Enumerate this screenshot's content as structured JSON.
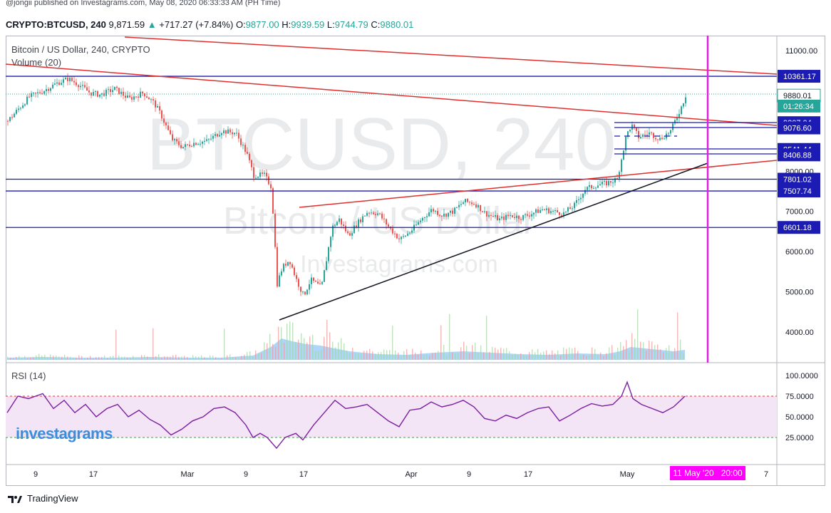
{
  "publisher": "@jongii published on Investagrams.com, May 08, 2020 06:33:33 AM (PH Time)",
  "header": {
    "symbol": "CRYPTO:BTCUSD, 240",
    "last": "9,871.59",
    "change": "+717.27 (+7.84%)",
    "o_label": "O:",
    "o": "9877.00",
    "h_label": "H:",
    "h": "9939.59",
    "l_label": "L:",
    "l": "9744.79",
    "c_label": "C:",
    "c": "9880.01"
  },
  "main_title": "Bitcoin / US Dollar, 240, CRYPTO",
  "volume_label": "Volume (20)",
  "rsi_label": "RSI (14)",
  "watermark": {
    "big": "BTCUSD, 240",
    "sub": "Bitcoin / US Dollar",
    "site": "Investagrams.com"
  },
  "logo_text": "investagrams",
  "footer_brand": "TradingView",
  "time_flag": "11 May '20   20:00",
  "colors": {
    "up": "#26a69a",
    "down": "#ef5350",
    "hline": "#1c1cb4",
    "trend_red": "#e0302e",
    "trend_black": "#131722",
    "vline": "#e020e0",
    "rsi_line": "#7b1fa2",
    "rsi_band": "#f3e5f5",
    "volume": "#90caf9"
  },
  "chart_data": {
    "type": "candlestick",
    "title": "Bitcoin / US Dollar, 240, CRYPTO",
    "price_axis": {
      "ticks": [
        4000,
        5000,
        6000,
        7000,
        8000,
        11000
      ],
      "tick_labels": [
        "4000.00",
        "5000.00",
        "6000.00",
        "7000.00",
        "8000.00",
        "11000.00"
      ],
      "range": [
        3300,
        11300
      ]
    },
    "x_axis": {
      "labels": [
        "9",
        "17",
        "Mar",
        "9",
        "17",
        "Apr",
        "9",
        "17",
        "May",
        "7"
      ]
    },
    "price_labels": [
      {
        "label": "10361.17",
        "value": 10361.17,
        "style": "box"
      },
      {
        "label": "9880.01",
        "value": 9880.01,
        "style": "last"
      },
      {
        "label": "01:26:34",
        "value": 9620,
        "style": "timer"
      },
      {
        "label": "9207.04",
        "value": 9207.04,
        "style": "box"
      },
      {
        "label": "9076.60",
        "value": 9076.6,
        "style": "box"
      },
      {
        "label": "8541.44",
        "value": 8541.44,
        "style": "box"
      },
      {
        "label": "8406.88",
        "value": 8406.88,
        "style": "box"
      },
      {
        "label": "7801.02",
        "value": 7801.02,
        "style": "box"
      },
      {
        "label": "7507.74",
        "value": 7507.74,
        "style": "box"
      },
      {
        "label": "6601.18",
        "value": 6601.18,
        "style": "box"
      }
    ],
    "horizontal_levels": [
      10361.17,
      7801.02,
      7507.74,
      6601.18
    ],
    "close_path": [
      [
        0,
        9250
      ],
      [
        30,
        9850
      ],
      [
        50,
        10000
      ],
      [
        70,
        10200
      ],
      [
        85,
        10300
      ],
      [
        100,
        10150
      ],
      [
        115,
        9950
      ],
      [
        130,
        9900
      ],
      [
        150,
        10050
      ],
      [
        170,
        9800
      ],
      [
        190,
        9950
      ],
      [
        205,
        9700
      ],
      [
        215,
        9400
      ],
      [
        230,
        8800
      ],
      [
        245,
        8600
      ],
      [
        260,
        8700
      ],
      [
        280,
        8750
      ],
      [
        300,
        9000
      ],
      [
        320,
        8950
      ],
      [
        335,
        8450
      ],
      [
        345,
        7900
      ],
      [
        360,
        7900
      ],
      [
        370,
        7600
      ],
      [
        378,
        5200
      ],
      [
        385,
        5600
      ],
      [
        395,
        5800
      ],
      [
        405,
        5300
      ],
      [
        415,
        4900
      ],
      [
        425,
        5300
      ],
      [
        440,
        5100
      ],
      [
        455,
        6600
      ],
      [
        465,
        6800
      ],
      [
        478,
        6400
      ],
      [
        490,
        6700
      ],
      [
        505,
        7000
      ],
      [
        520,
        6950
      ],
      [
        535,
        6600
      ],
      [
        550,
        6300
      ],
      [
        565,
        6500
      ],
      [
        580,
        6800
      ],
      [
        595,
        7050
      ],
      [
        610,
        6900
      ],
      [
        625,
        7000
      ],
      [
        640,
        7250
      ],
      [
        655,
        7200
      ],
      [
        670,
        6950
      ],
      [
        690,
        6800
      ],
      [
        705,
        6900
      ],
      [
        720,
        6850
      ],
      [
        735,
        6950
      ],
      [
        750,
        7050
      ],
      [
        765,
        7000
      ],
      [
        780,
        6950
      ],
      [
        795,
        7150
      ],
      [
        810,
        7550
      ],
      [
        825,
        7650
      ],
      [
        840,
        7700
      ],
      [
        855,
        7800
      ],
      [
        868,
        8900
      ],
      [
        875,
        9150
      ],
      [
        885,
        8850
      ],
      [
        900,
        8950
      ],
      [
        915,
        8800
      ],
      [
        930,
        9000
      ],
      [
        945,
        9600
      ],
      [
        951,
        9880
      ]
    ],
    "volume_path": [
      [
        0,
        3
      ],
      [
        50,
        4
      ],
      [
        100,
        3
      ],
      [
        150,
        3
      ],
      [
        200,
        4
      ],
      [
        250,
        3
      ],
      [
        300,
        3
      ],
      [
        345,
        6
      ],
      [
        370,
        18
      ],
      [
        385,
        30
      ],
      [
        400,
        26
      ],
      [
        420,
        22
      ],
      [
        440,
        20
      ],
      [
        460,
        16
      ],
      [
        480,
        12
      ],
      [
        520,
        8
      ],
      [
        560,
        7
      ],
      [
        600,
        10
      ],
      [
        640,
        12
      ],
      [
        680,
        10
      ],
      [
        720,
        8
      ],
      [
        760,
        7
      ],
      [
        800,
        9
      ],
      [
        840,
        8
      ],
      [
        860,
        12
      ],
      [
        875,
        18
      ],
      [
        895,
        16
      ],
      [
        915,
        14
      ],
      [
        935,
        12
      ],
      [
        951,
        14
      ]
    ],
    "rsi": {
      "label": "RSI (14)",
      "ticks": [
        25,
        50,
        75,
        100
      ],
      "tick_labels": [
        "25.0000",
        "50.0000",
        "75.0000",
        "100.0000"
      ],
      "upper_band": 70,
      "lower_band": 30,
      "values": [
        [
          0,
          55
        ],
        [
          15,
          75
        ],
        [
          30,
          72
        ],
        [
          50,
          78
        ],
        [
          65,
          60
        ],
        [
          80,
          70
        ],
        [
          95,
          55
        ],
        [
          110,
          65
        ],
        [
          125,
          50
        ],
        [
          140,
          60
        ],
        [
          155,
          65
        ],
        [
          170,
          50
        ],
        [
          185,
          58
        ],
        [
          200,
          47
        ],
        [
          215,
          40
        ],
        [
          230,
          28
        ],
        [
          245,
          35
        ],
        [
          260,
          45
        ],
        [
          275,
          50
        ],
        [
          290,
          60
        ],
        [
          305,
          62
        ],
        [
          320,
          55
        ],
        [
          335,
          40
        ],
        [
          345,
          25
        ],
        [
          355,
          30
        ],
        [
          365,
          25
        ],
        [
          378,
          12
        ],
        [
          390,
          25
        ],
        [
          405,
          30
        ],
        [
          415,
          22
        ],
        [
          430,
          40
        ],
        [
          445,
          55
        ],
        [
          460,
          70
        ],
        [
          475,
          60
        ],
        [
          490,
          62
        ],
        [
          505,
          65
        ],
        [
          520,
          55
        ],
        [
          535,
          45
        ],
        [
          550,
          38
        ],
        [
          565,
          58
        ],
        [
          580,
          60
        ],
        [
          595,
          68
        ],
        [
          610,
          62
        ],
        [
          625,
          65
        ],
        [
          640,
          70
        ],
        [
          655,
          62
        ],
        [
          670,
          48
        ],
        [
          685,
          45
        ],
        [
          700,
          52
        ],
        [
          715,
          48
        ],
        [
          730,
          55
        ],
        [
          745,
          60
        ],
        [
          760,
          62
        ],
        [
          775,
          45
        ],
        [
          790,
          52
        ],
        [
          805,
          60
        ],
        [
          820,
          66
        ],
        [
          835,
          63
        ],
        [
          850,
          65
        ],
        [
          862,
          75
        ],
        [
          870,
          92
        ],
        [
          878,
          72
        ],
        [
          890,
          65
        ],
        [
          905,
          60
        ],
        [
          920,
          55
        ],
        [
          935,
          62
        ],
        [
          945,
          70
        ],
        [
          951,
          75
        ]
      ]
    }
  }
}
